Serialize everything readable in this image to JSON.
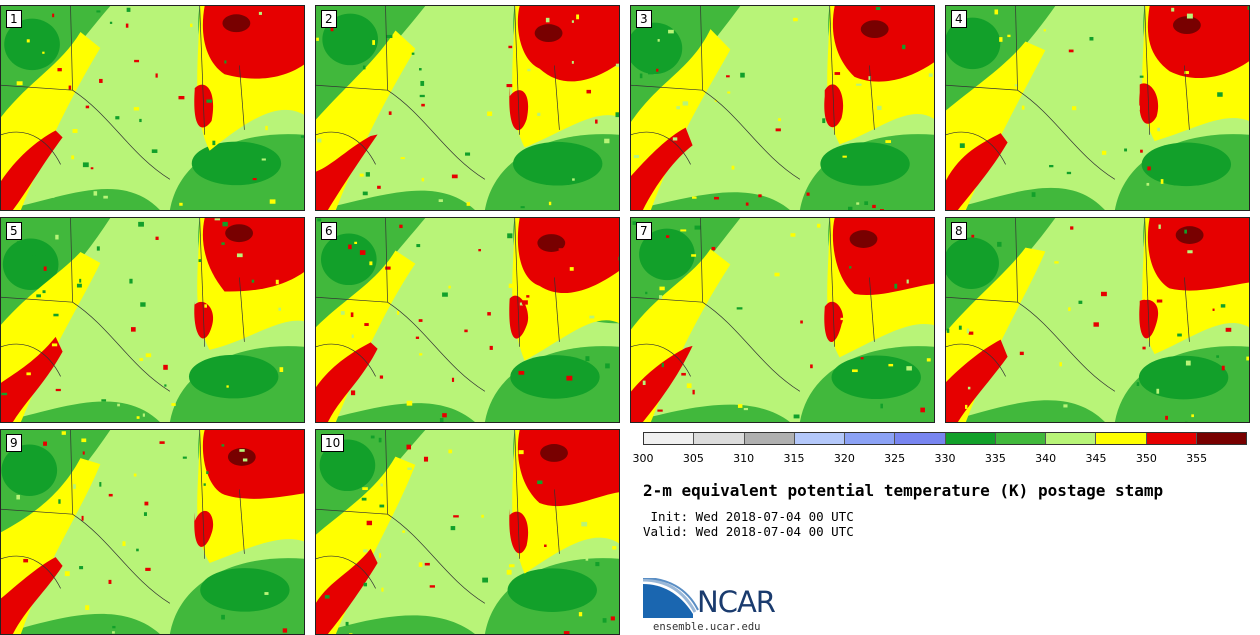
{
  "panels": [
    {
      "label": "1"
    },
    {
      "label": "2"
    },
    {
      "label": "3"
    },
    {
      "label": "4"
    },
    {
      "label": "5"
    },
    {
      "label": "6"
    },
    {
      "label": "7"
    },
    {
      "label": "8"
    },
    {
      "label": "9"
    },
    {
      "label": "10"
    }
  ],
  "colorbar": {
    "colors": [
      "#f0f0f0",
      "#dcdcdc",
      "#b0b0b0",
      "#b4c8fa",
      "#8ca2f5",
      "#7885f0",
      "#12a02a",
      "#41b83c",
      "#b8f478",
      "#ffff00",
      "#e60000",
      "#780000"
    ],
    "ticks": [
      "300",
      "305",
      "310",
      "315",
      "320",
      "325",
      "330",
      "335",
      "340",
      "345",
      "350",
      "355"
    ]
  },
  "title": "2-m equivalent potential temperature (K) postage stamp",
  "init": " Init: Wed 2018-07-04 00 UTC",
  "valid": "Valid: Wed 2018-07-04 00 UTC",
  "logo": {
    "text": "NCAR",
    "url": "ensemble.ucar.edu"
  }
}
